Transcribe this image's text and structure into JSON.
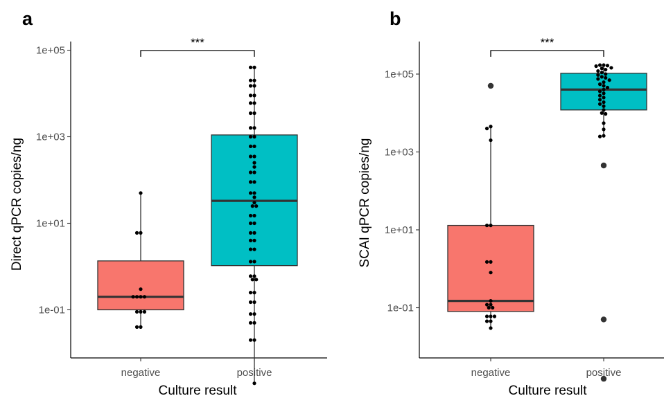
{
  "chart_data": [
    {
      "type": "box",
      "panel_label": "a",
      "xlabel": "Culture result",
      "ylabel": "Direct qPCR copies/ng",
      "y_scale": "log10",
      "ylim": [
        0.003,
        150000
      ],
      "y_ticks": [
        0.1,
        10,
        1000,
        100000
      ],
      "y_tick_labels": [
        "1e-01",
        "1e+01",
        "1e+03",
        "1e+05"
      ],
      "categories": [
        "negative",
        "positive"
      ],
      "significance": "***",
      "grid": false,
      "series": [
        {
          "category": "negative",
          "color": "#F8766D",
          "box": {
            "whisker_low": 0.04,
            "q1": 0.1,
            "median": 0.2,
            "q3": 1.35,
            "whisker_high": 50
          },
          "points": [
            50,
            6,
            6,
            0.3,
            0.2,
            0.2,
            0.2,
            0.2,
            0.09,
            0.09,
            0.09,
            0.04,
            0.04
          ]
        },
        {
          "category": "positive",
          "color": "#00BFC4",
          "box": {
            "whisker_low": 0.002,
            "q1": 1.05,
            "median": 33,
            "q3": 1100,
            "whisker_high": 40000
          },
          "points": [
            40000,
            40000,
            20000,
            20000,
            15000,
            15000,
            9000,
            9000,
            6000,
            6000,
            3500,
            3500,
            1600,
            1600,
            1000,
            1000,
            600,
            600,
            350,
            350,
            250,
            200,
            150,
            150,
            90,
            90,
            50,
            50,
            40,
            30,
            25,
            25,
            15,
            15,
            10,
            10,
            6,
            6,
            4,
            4,
            2.5,
            2.5,
            1.3,
            1.3,
            0.6,
            0.6,
            0.5,
            0.5,
            0.25,
            0.25,
            0.15,
            0.15,
            0.08,
            0.08,
            0.05,
            0.05,
            0.02,
            0.02,
            0.002
          ]
        }
      ]
    },
    {
      "type": "box",
      "panel_label": "b",
      "xlabel": "Culture result",
      "ylabel": "SCAI qPCR copies/ng",
      "y_scale": "log10",
      "ylim": [
        0.001,
        1500000
      ],
      "y_ticks": [
        0.1,
        10,
        1000,
        100000
      ],
      "y_tick_labels": [
        "1e-01",
        "1e+01",
        "1e+03",
        "1e+05"
      ],
      "categories": [
        "negative",
        "positive"
      ],
      "significance": "***",
      "grid": false,
      "series": [
        {
          "category": "negative",
          "color": "#F8766D",
          "box": {
            "whisker_low": 0.03,
            "q1": 0.08,
            "median": 0.15,
            "q3": 13,
            "whisker_high": 4500
          },
          "outliers": [
            50000
          ],
          "points": [
            4500,
            4000,
            2000,
            13,
            13,
            1.5,
            1.5,
            0.8,
            0.15,
            0.12,
            0.12,
            0.1,
            0.1,
            0.06,
            0.06,
            0.06,
            0.045,
            0.045,
            0.03
          ]
        },
        {
          "category": "positive",
          "color": "#00BFC4",
          "box": {
            "whisker_low": 2500,
            "q1": 12000,
            "median": 40000,
            "q3": 105000,
            "whisker_high": 170000
          },
          "outliers": [
            450,
            0.05,
            0.0015
          ],
          "points": [
            170000,
            170000,
            165000,
            160000,
            145000,
            140000,
            130000,
            120000,
            110000,
            100000,
            95000,
            85000,
            80000,
            75000,
            70000,
            62000,
            55000,
            50000,
            45000,
            40000,
            36000,
            32000,
            28000,
            25000,
            22000,
            19000,
            17000,
            15000,
            12000,
            10000,
            9500,
            5500,
            3800,
            2600,
            2500
          ]
        }
      ]
    }
  ]
}
